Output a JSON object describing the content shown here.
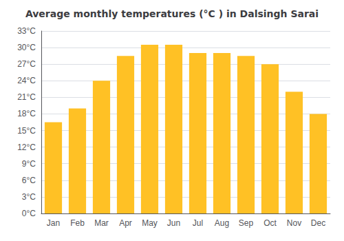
{
  "chart_data": {
    "type": "bar",
    "title": "Average monthly temperatures (°C ) in Dalsingh Sarai",
    "categories": [
      "Jan",
      "Feb",
      "Mar",
      "Apr",
      "May",
      "Jun",
      "Jul",
      "Aug",
      "Sep",
      "Oct",
      "Nov",
      "Dec"
    ],
    "values": [
      16.5,
      19.0,
      24.0,
      28.5,
      30.5,
      30.5,
      29.0,
      29.0,
      28.5,
      27.0,
      22.0,
      18.0
    ],
    "color": "#FFC125",
    "ylim": [
      0,
      33
    ],
    "yticks": [
      {
        "value": 0,
        "label": "0°C"
      },
      {
        "value": 3,
        "label": "3°C"
      },
      {
        "value": 6,
        "label": "6°C"
      },
      {
        "value": 9,
        "label": "9°C"
      },
      {
        "value": 12,
        "label": "12°C"
      },
      {
        "value": 15,
        "label": "15°C"
      },
      {
        "value": 18,
        "label": "18°C"
      },
      {
        "value": 21,
        "label": "21°C"
      },
      {
        "value": 24,
        "label": "24°C"
      },
      {
        "value": 27,
        "label": "27°C"
      },
      {
        "value": 30,
        "label": "30°C"
      },
      {
        "value": 33,
        "label": "33°C"
      }
    ],
    "grid": true
  }
}
